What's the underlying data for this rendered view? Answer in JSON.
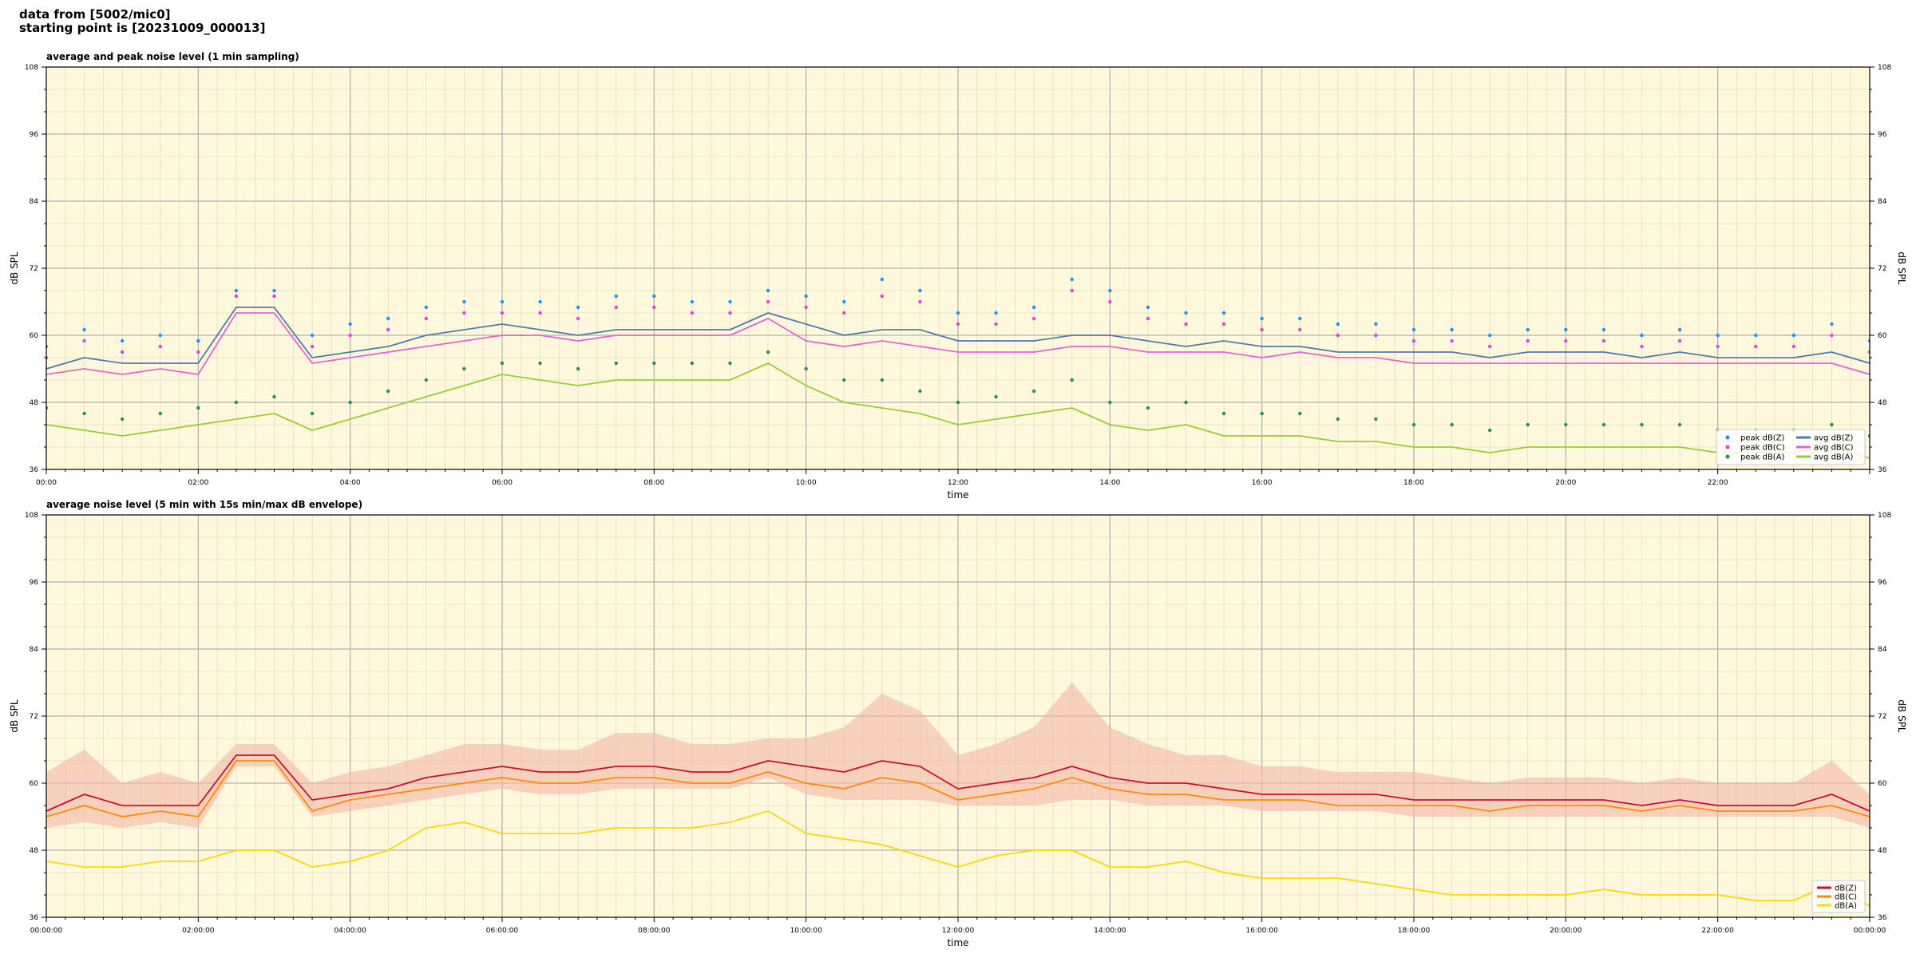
{
  "header": {
    "line1": "data from [5002/mic0]",
    "line2": "starting point is [20231009_000013]"
  },
  "colors": {
    "plot_bg": "#fff8dc",
    "grid_major": "#b0b0b0",
    "grid_minor": "#e4dcc0",
    "peak_z": "#1e90ff",
    "peak_c": "#e040e0",
    "peak_a": "#2e8b57",
    "avg_z": "#4f7cac",
    "avg_c": "#e066d0",
    "avg_a": "#9acd32",
    "env_fill": "#f4b8a8",
    "dbz": "#c8102e",
    "dbc": "#ff8c00",
    "dba": "#ffd700"
  },
  "chart_data": [
    {
      "type": "line",
      "title": "average and peak noise level (1 min sampling)",
      "xlabel": "time",
      "ylabel": "dB SPL",
      "ylim": [
        36,
        108
      ],
      "xlim_hours": [
        0,
        24
      ],
      "yticks": [
        36,
        48,
        60,
        72,
        84,
        96,
        108
      ],
      "xtick_labels": [
        "00:00",
        "02:00",
        "04:00",
        "06:00",
        "08:00",
        "10:00",
        "12:00",
        "14:00",
        "16:00",
        "18:00",
        "20:00",
        "22:00"
      ],
      "grid": true,
      "legend_position": "lower-right",
      "legend": [
        {
          "name": "peak dB(Z)",
          "kind": "marker",
          "color_key": "peak_z"
        },
        {
          "name": "peak dB(C)",
          "kind": "marker",
          "color_key": "peak_c"
        },
        {
          "name": "peak dB(A)",
          "kind": "marker",
          "color_key": "peak_a"
        },
        {
          "name": "avg dB(Z)",
          "kind": "line",
          "color_key": "avg_z"
        },
        {
          "name": "avg dB(C)",
          "kind": "line",
          "color_key": "avg_c"
        },
        {
          "name": "avg dB(A)",
          "kind": "line",
          "color_key": "avg_a"
        }
      ],
      "x": [
        0.0,
        0.5,
        1.0,
        1.5,
        2.0,
        2.5,
        3.0,
        3.5,
        4.0,
        4.5,
        5.0,
        5.5,
        6.0,
        6.5,
        7.0,
        7.5,
        8.0,
        8.5,
        9.0,
        9.5,
        10.0,
        10.5,
        11.0,
        11.5,
        12.0,
        12.5,
        13.0,
        13.5,
        14.0,
        14.5,
        15.0,
        15.5,
        16.0,
        16.5,
        17.0,
        17.5,
        18.0,
        18.5,
        19.0,
        19.5,
        20.0,
        20.5,
        21.0,
        21.5,
        22.0,
        22.5,
        23.0,
        23.5,
        24.0
      ],
      "series": [
        {
          "name": "avg dB(Z)",
          "color_key": "avg_z",
          "values": [
            54,
            56,
            55,
            55,
            55,
            65,
            65,
            56,
            57,
            58,
            60,
            61,
            62,
            61,
            60,
            61,
            61,
            61,
            61,
            64,
            62,
            60,
            61,
            61,
            59,
            59,
            59,
            60,
            60,
            59,
            58,
            59,
            58,
            58,
            57,
            57,
            57,
            57,
            56,
            57,
            57,
            57,
            56,
            57,
            56,
            56,
            56,
            57,
            55
          ]
        },
        {
          "name": "avg dB(C)",
          "color_key": "avg_c",
          "values": [
            53,
            54,
            53,
            54,
            53,
            64,
            64,
            55,
            56,
            57,
            58,
            59,
            60,
            60,
            59,
            60,
            60,
            60,
            60,
            63,
            59,
            58,
            59,
            58,
            57,
            57,
            57,
            58,
            58,
            57,
            57,
            57,
            56,
            57,
            56,
            56,
            55,
            55,
            55,
            55,
            55,
            55,
            55,
            55,
            55,
            55,
            55,
            55,
            53
          ]
        },
        {
          "name": "avg dB(A)",
          "color_key": "avg_a",
          "values": [
            44,
            43,
            42,
            43,
            44,
            45,
            46,
            43,
            45,
            47,
            49,
            51,
            53,
            52,
            51,
            52,
            52,
            52,
            52,
            55,
            51,
            48,
            47,
            46,
            44,
            45,
            46,
            47,
            44,
            43,
            44,
            42,
            42,
            42,
            41,
            41,
            40,
            40,
            39,
            40,
            40,
            40,
            40,
            40,
            39,
            39,
            39,
            40,
            38
          ]
        }
      ],
      "peak_series": [
        {
          "name": "peak dB(Z)",
          "color_key": "peak_z",
          "values": [
            58,
            61,
            59,
            60,
            59,
            68,
            68,
            60,
            62,
            63,
            65,
            66,
            66,
            66,
            65,
            67,
            67,
            66,
            66,
            68,
            67,
            66,
            70,
            68,
            64,
            64,
            65,
            70,
            68,
            65,
            64,
            64,
            63,
            63,
            62,
            62,
            61,
            61,
            60,
            61,
            61,
            61,
            60,
            61,
            60,
            60,
            60,
            62,
            59
          ]
        },
        {
          "name": "peak dB(C)",
          "color_key": "peak_c",
          "values": [
            56,
            59,
            57,
            58,
            57,
            67,
            67,
            58,
            60,
            61,
            63,
            64,
            64,
            64,
            63,
            65,
            65,
            64,
            64,
            66,
            65,
            64,
            67,
            66,
            62,
            62,
            63,
            68,
            66,
            63,
            62,
            62,
            61,
            61,
            60,
            60,
            59,
            59,
            58,
            59,
            59,
            59,
            58,
            59,
            58,
            58,
            58,
            60,
            57
          ]
        },
        {
          "name": "peak dB(A)",
          "color_key": "peak_a",
          "values": [
            47,
            46,
            45,
            46,
            47,
            48,
            49,
            46,
            48,
            50,
            52,
            54,
            55,
            55,
            54,
            55,
            55,
            55,
            55,
            57,
            54,
            52,
            52,
            50,
            48,
            49,
            50,
            52,
            48,
            47,
            48,
            46,
            46,
            46,
            45,
            45,
            44,
            44,
            43,
            44,
            44,
            44,
            44,
            44,
            43,
            43,
            43,
            44,
            42
          ]
        }
      ]
    },
    {
      "type": "line",
      "title": "average noise level (5 min with 15s min/max dB envelope)",
      "xlabel": "time",
      "ylabel": "dB SPL",
      "ylim": [
        36,
        108
      ],
      "xlim_hours": [
        0,
        24
      ],
      "yticks": [
        36,
        48,
        60,
        72,
        84,
        96,
        108
      ],
      "xtick_labels": [
        "00:00:00",
        "02:00:00",
        "04:00:00",
        "06:00:00",
        "08:00:00",
        "10:00:00",
        "12:00:00",
        "14:00:00",
        "16:00:00",
        "18:00:00",
        "20:00:00",
        "22:00:00",
        "00:00:00"
      ],
      "grid": true,
      "legend_position": "lower-right",
      "legend": [
        {
          "name": "dB(Z)",
          "kind": "line",
          "color_key": "dbz"
        },
        {
          "name": "dB(C)",
          "kind": "line",
          "color_key": "dbc"
        },
        {
          "name": "dB(A)",
          "kind": "line",
          "color_key": "dba"
        }
      ],
      "x": [
        0.0,
        0.5,
        1.0,
        1.5,
        2.0,
        2.5,
        3.0,
        3.5,
        4.0,
        4.5,
        5.0,
        5.5,
        6.0,
        6.5,
        7.0,
        7.5,
        8.0,
        8.5,
        9.0,
        9.5,
        10.0,
        10.5,
        11.0,
        11.5,
        12.0,
        12.5,
        13.0,
        13.5,
        14.0,
        14.5,
        15.0,
        15.5,
        16.0,
        16.5,
        17.0,
        17.5,
        18.0,
        18.5,
        19.0,
        19.5,
        20.0,
        20.5,
        21.0,
        21.5,
        22.0,
        22.5,
        23.0,
        23.5,
        24.0
      ],
      "envelope_max": [
        62,
        66,
        60,
        62,
        60,
        67,
        67,
        60,
        62,
        63,
        65,
        67,
        67,
        66,
        66,
        69,
        69,
        67,
        67,
        68,
        68,
        70,
        76,
        73,
        65,
        67,
        70,
        78,
        70,
        67,
        65,
        65,
        63,
        63,
        62,
        62,
        62,
        61,
        60,
        61,
        61,
        61,
        60,
        61,
        60,
        60,
        60,
        64,
        58
      ],
      "envelope_min": [
        52,
        53,
        52,
        53,
        52,
        63,
        63,
        54,
        55,
        56,
        57,
        58,
        59,
        58,
        58,
        59,
        59,
        59,
        59,
        61,
        58,
        57,
        57,
        57,
        56,
        56,
        56,
        57,
        57,
        56,
        56,
        56,
        55,
        55,
        55,
        55,
        54,
        54,
        54,
        54,
        54,
        54,
        54,
        54,
        54,
        54,
        54,
        54,
        52
      ],
      "series": [
        {
          "name": "dB(Z)",
          "color_key": "dbz",
          "values": [
            55,
            58,
            56,
            56,
            56,
            65,
            65,
            57,
            58,
            59,
            61,
            62,
            63,
            62,
            62,
            63,
            63,
            62,
            62,
            64,
            63,
            62,
            64,
            63,
            59,
            60,
            61,
            63,
            61,
            60,
            60,
            59,
            58,
            58,
            58,
            58,
            57,
            57,
            57,
            57,
            57,
            57,
            56,
            57,
            56,
            56,
            56,
            58,
            55
          ]
        },
        {
          "name": "dB(C)",
          "color_key": "dbc",
          "values": [
            54,
            56,
            54,
            55,
            54,
            64,
            64,
            55,
            57,
            58,
            59,
            60,
            61,
            60,
            60,
            61,
            61,
            60,
            60,
            62,
            60,
            59,
            61,
            60,
            57,
            58,
            59,
            61,
            59,
            58,
            58,
            57,
            57,
            57,
            56,
            56,
            56,
            56,
            55,
            56,
            56,
            56,
            55,
            56,
            55,
            55,
            55,
            56,
            54
          ]
        },
        {
          "name": "dB(A)",
          "color_key": "dba",
          "values": [
            46,
            45,
            45,
            46,
            46,
            48,
            48,
            45,
            46,
            48,
            52,
            53,
            51,
            51,
            51,
            52,
            52,
            52,
            53,
            55,
            51,
            50,
            49,
            47,
            45,
            47,
            48,
            48,
            45,
            45,
            46,
            44,
            43,
            43,
            43,
            42,
            41,
            40,
            40,
            40,
            40,
            41,
            40,
            40,
            40,
            39,
            39,
            42,
            38
          ]
        }
      ]
    }
  ]
}
